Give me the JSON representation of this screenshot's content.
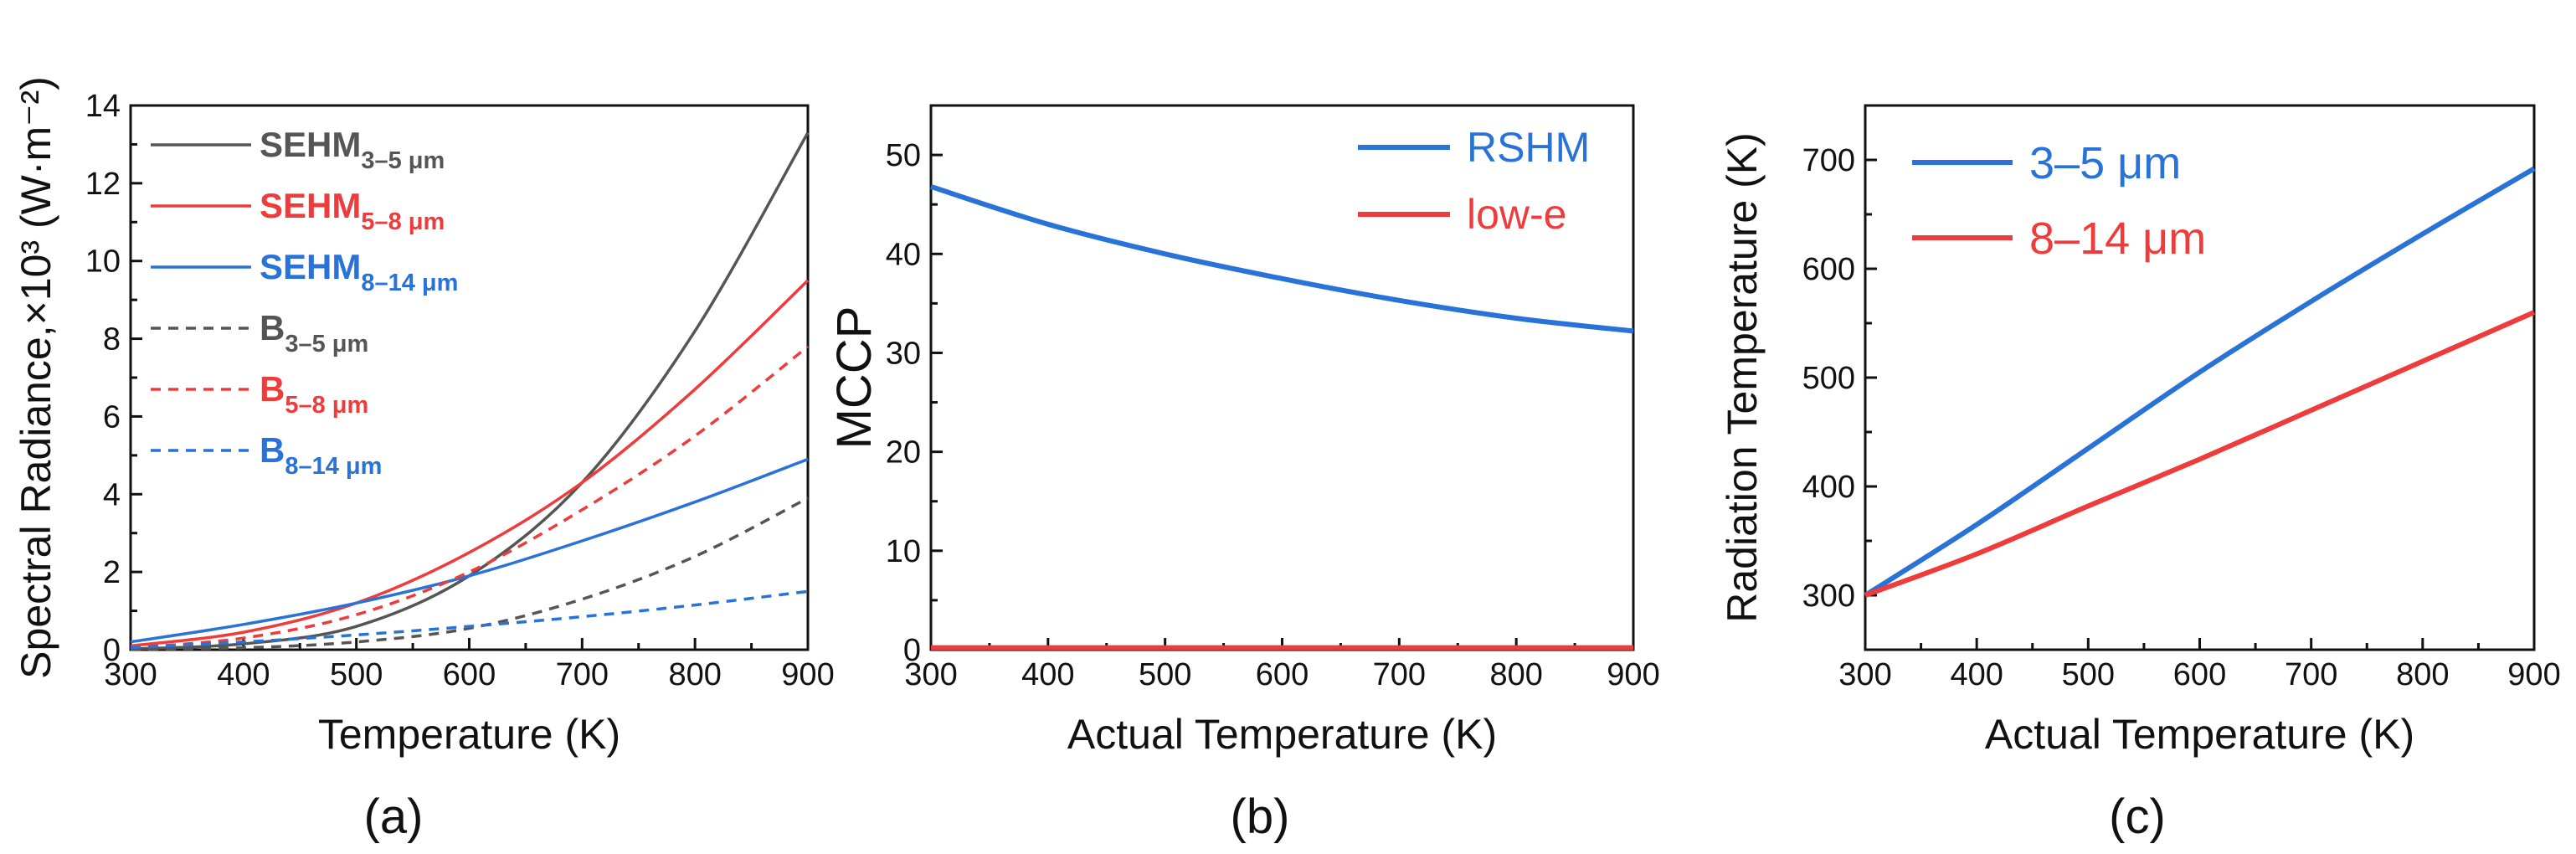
{
  "figure": {
    "panel_labels": [
      "(a)",
      "(b)",
      "(c)"
    ]
  },
  "colors": {
    "gray": "#555555",
    "red": "#ee3b3b",
    "blue": "#2872d8"
  },
  "chart_data": [
    {
      "panel": "(a)",
      "type": "line",
      "xlabel": "Temperature (K)",
      "ylabel": "Spectral Radiance,×10³ (W·m⁻²)",
      "xlim": [
        300,
        900
      ],
      "ylim": [
        0,
        14
      ],
      "xticks": [
        300,
        400,
        500,
        600,
        700,
        800,
        900
      ],
      "yticks": [
        0,
        2,
        4,
        6,
        8,
        10,
        12,
        14
      ],
      "x": [
        300,
        400,
        500,
        600,
        700,
        800,
        900
      ],
      "series": [
        {
          "name": "SEHM",
          "sub": "3–5 μm",
          "color": "gray",
          "dash": false,
          "values": [
            0.02,
            0.15,
            0.6,
            1.9,
            4.3,
            8.2,
            13.3
          ]
        },
        {
          "name": "SEHM",
          "sub": "5–8 μm",
          "color": "red",
          "dash": false,
          "values": [
            0.1,
            0.45,
            1.2,
            2.5,
            4.3,
            6.7,
            9.5
          ]
        },
        {
          "name": "SEHM",
          "sub": "8–14 μm",
          "color": "blue",
          "dash": false,
          "values": [
            0.2,
            0.65,
            1.2,
            1.9,
            2.8,
            3.8,
            4.9
          ]
        },
        {
          "name": "B",
          "sub": "3–5 μm",
          "color": "gray",
          "dash": true,
          "values": [
            0.01,
            0.05,
            0.2,
            0.55,
            1.3,
            2.4,
            3.9
          ]
        },
        {
          "name": "B",
          "sub": "5–8 μm",
          "color": "red",
          "dash": true,
          "values": [
            0.05,
            0.3,
            0.9,
            2.0,
            3.6,
            5.5,
            7.8
          ]
        },
        {
          "name": "B",
          "sub": "8–14 μm",
          "color": "blue",
          "dash": true,
          "values": [
            0.05,
            0.2,
            0.38,
            0.6,
            0.85,
            1.15,
            1.5
          ]
        }
      ]
    },
    {
      "panel": "(b)",
      "type": "line",
      "xlabel": "Actual Temperature (K)",
      "ylabel": "MCCP",
      "xlim": [
        300,
        900
      ],
      "ylim": [
        0,
        55
      ],
      "xticks": [
        300,
        400,
        500,
        600,
        700,
        800,
        900
      ],
      "yticks": [
        0,
        10,
        20,
        30,
        40,
        50
      ],
      "x": [
        300,
        400,
        500,
        600,
        700,
        800,
        900
      ],
      "series": [
        {
          "name": "RSHM",
          "color": "blue",
          "values": [
            46.8,
            43.0,
            40.0,
            37.5,
            35.3,
            33.5,
            32.2
          ]
        },
        {
          "name": "low-e",
          "color": "red",
          "values": [
            0.2,
            0.2,
            0.2,
            0.2,
            0.2,
            0.2,
            0.2
          ]
        }
      ]
    },
    {
      "panel": "(c)",
      "type": "line",
      "xlabel": "Actual Temperature (K)",
      "ylabel": "Radiation Temperature (K)",
      "xlim": [
        300,
        900
      ],
      "ylim": [
        250,
        750
      ],
      "xticks": [
        300,
        400,
        500,
        600,
        700,
        800,
        900
      ],
      "yticks": [
        300,
        400,
        500,
        600,
        700
      ],
      "x": [
        300,
        400,
        500,
        600,
        700,
        800,
        900
      ],
      "series": [
        {
          "name": "3–5 μm",
          "color": "blue",
          "values": [
            300,
            365,
            435,
            505,
            570,
            632,
            692
          ]
        },
        {
          "name": "8–14 μm",
          "color": "red",
          "values": [
            300,
            338,
            382,
            425,
            470,
            515,
            560
          ]
        }
      ]
    }
  ]
}
